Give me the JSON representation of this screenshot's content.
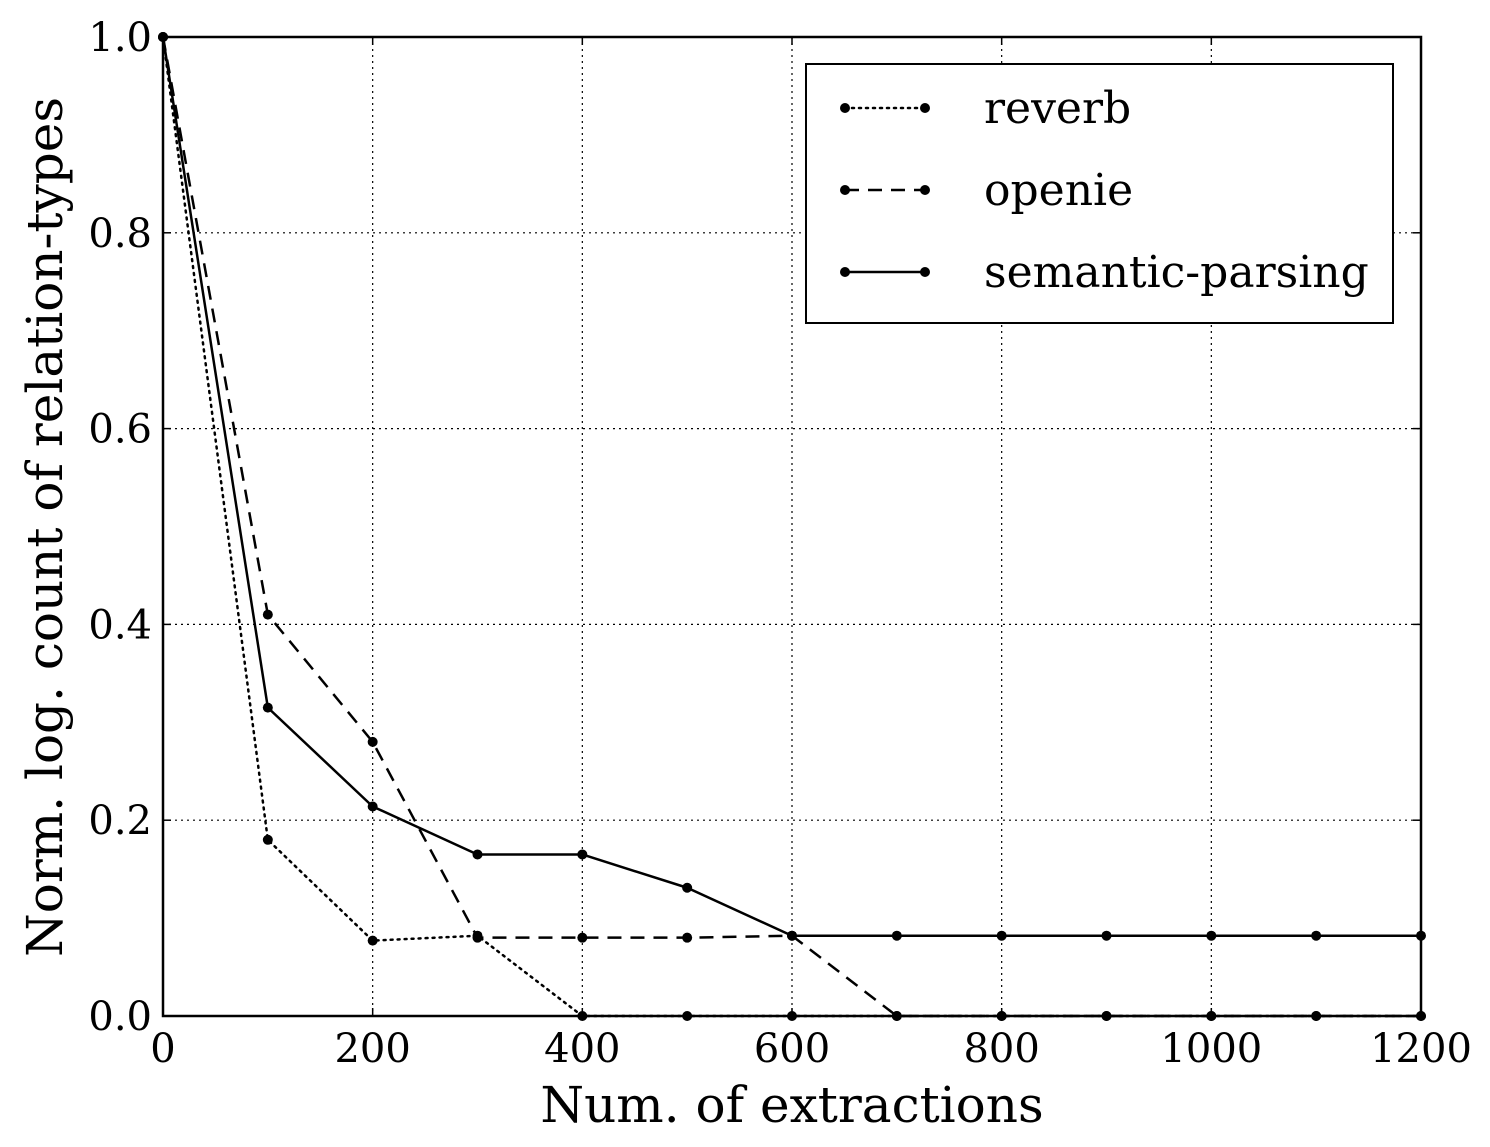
{
  "chart_data": {
    "type": "line",
    "title": "",
    "xlabel": "Num. of extractions",
    "ylabel": "Norm. log. count of relation-types",
    "xlim": [
      0,
      1200
    ],
    "ylim": [
      0.0,
      1.0
    ],
    "xticks": [
      "0",
      "200",
      "400",
      "600",
      "800",
      "1000",
      "1200"
    ],
    "yticks": [
      "0.0",
      "0.2",
      "0.4",
      "0.6",
      "0.8",
      "1.0"
    ],
    "grid": true,
    "legend_position": "upper-right",
    "x": [
      0,
      100,
      200,
      300,
      400,
      500,
      600,
      700,
      800,
      900,
      1000,
      1100,
      1200
    ],
    "series": [
      {
        "name": "reverb",
        "style": "dotted",
        "color": "#000000",
        "values": [
          1.0,
          0.18,
          0.077,
          0.082,
          0.0,
          0.0,
          0.0,
          0.0,
          0.0,
          0.0,
          0.0,
          0.0,
          0.0
        ]
      },
      {
        "name": "openie",
        "style": "dashed",
        "color": "#000000",
        "values": [
          1.0,
          0.41,
          0.28,
          0.08,
          0.08,
          0.08,
          0.082,
          0.0,
          0.0,
          0.0,
          0.0,
          0.0,
          0.0
        ]
      },
      {
        "name": "semantic-parsing",
        "style": "solid",
        "color": "#000000",
        "values": [
          1.0,
          0.315,
          0.214,
          0.165,
          0.165,
          0.131,
          0.082,
          0.082,
          0.082,
          0.082,
          0.082,
          0.082,
          0.082
        ]
      }
    ]
  }
}
